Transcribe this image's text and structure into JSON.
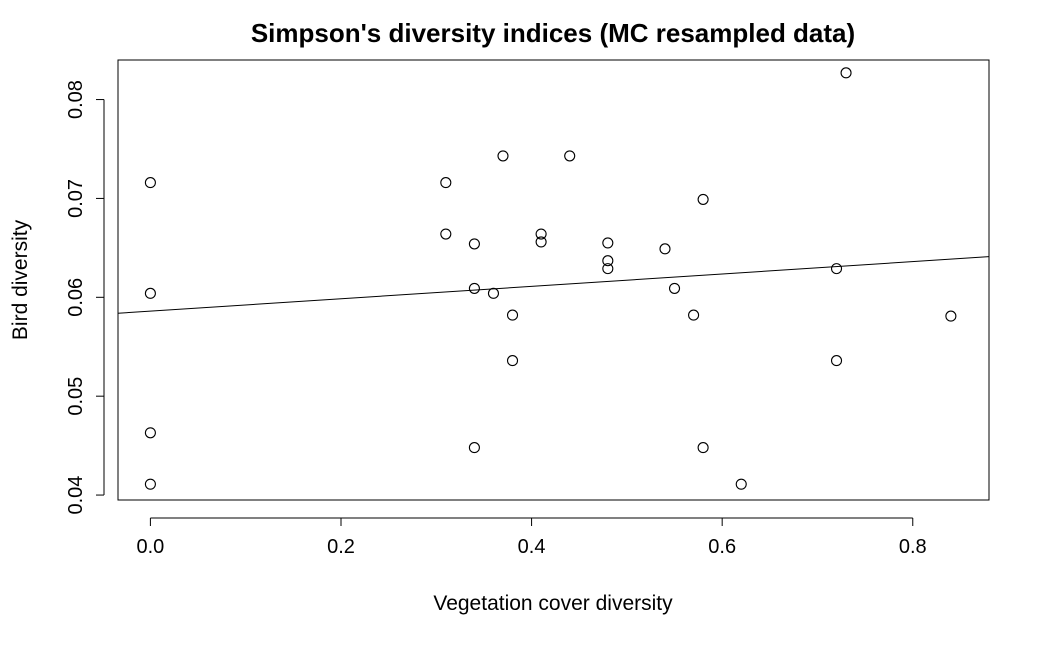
{
  "chart_data": {
    "type": "scatter",
    "title": "Simpson's diversity indices (MC resampled data)",
    "xlabel": "Vegetation cover diversity",
    "ylabel": "Bird diversity",
    "xlim": [
      -0.034,
      0.88
    ],
    "ylim": [
      0.0395,
      0.084
    ],
    "xticks": [
      "0.0",
      "0.2",
      "0.4",
      "0.6",
      "0.8"
    ],
    "yticks": [
      "0.04",
      "0.05",
      "0.06",
      "0.07",
      "0.08"
    ],
    "grid": false,
    "legend": "none",
    "points": [
      {
        "x": 0.0,
        "y": 0.0716
      },
      {
        "x": 0.0,
        "y": 0.0604
      },
      {
        "x": 0.0,
        "y": 0.0463
      },
      {
        "x": 0.0,
        "y": 0.0411
      },
      {
        "x": 0.31,
        "y": 0.0716
      },
      {
        "x": 0.31,
        "y": 0.0664
      },
      {
        "x": 0.34,
        "y": 0.0654
      },
      {
        "x": 0.34,
        "y": 0.0609
      },
      {
        "x": 0.34,
        "y": 0.0448
      },
      {
        "x": 0.36,
        "y": 0.0604
      },
      {
        "x": 0.37,
        "y": 0.0743
      },
      {
        "x": 0.38,
        "y": 0.0582
      },
      {
        "x": 0.38,
        "y": 0.0536
      },
      {
        "x": 0.41,
        "y": 0.0664
      },
      {
        "x": 0.41,
        "y": 0.0656
      },
      {
        "x": 0.44,
        "y": 0.0743
      },
      {
        "x": 0.48,
        "y": 0.0655
      },
      {
        "x": 0.48,
        "y": 0.0637
      },
      {
        "x": 0.48,
        "y": 0.0629
      },
      {
        "x": 0.54,
        "y": 0.0649
      },
      {
        "x": 0.55,
        "y": 0.0609
      },
      {
        "x": 0.57,
        "y": 0.0582
      },
      {
        "x": 0.58,
        "y": 0.0699
      },
      {
        "x": 0.58,
        "y": 0.0448
      },
      {
        "x": 0.62,
        "y": 0.0411
      },
      {
        "x": 0.72,
        "y": 0.0629
      },
      {
        "x": 0.72,
        "y": 0.0536
      },
      {
        "x": 0.73,
        "y": 0.0827
      },
      {
        "x": 0.84,
        "y": 0.0581
      }
    ],
    "trendline": {
      "intercept": 0.0586,
      "slope": 0.00626
    }
  }
}
